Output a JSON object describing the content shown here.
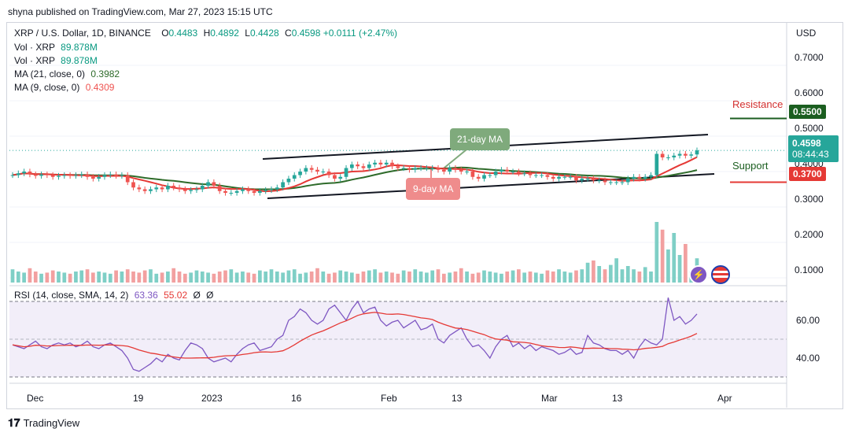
{
  "attribution": "shyna published on TradingView.com, Mar 27, 2023 15:15 UTC",
  "legend": {
    "symbol": "XRP / U.S. Dollar, 1D, BINANCE",
    "open_label": "O",
    "open": "0.4483",
    "high_label": "H",
    "high": "0.4892",
    "low_label": "L",
    "low": "0.4428",
    "close_label": "C",
    "close": "0.4598",
    "change": "+0.0111 (+2.47%)",
    "vol1_label": "Vol · XRP",
    "vol1": "89.878M",
    "vol2_label": "Vol · XRP",
    "vol2": "89.878M",
    "ma21_label": "MA (21, close, 0)",
    "ma21": "0.3982",
    "ma9_label": "MA (9, close, 0)",
    "ma9": "0.4309"
  },
  "currency": "USD",
  "price_badge": {
    "price": "0.4598",
    "countdown": "08:44:43"
  },
  "resistance": {
    "label": "Resistance",
    "value": "0.5500"
  },
  "support": {
    "label": "Support",
    "value": "0.3700"
  },
  "ma_tags": {
    "ma21": "21-day MA",
    "ma9": "9-day MA"
  },
  "rsi_legend": {
    "label": "RSI (14, close, SMA, 14, 2)",
    "rsi": "63.36",
    "sma": "55.02",
    "z1": "Ø",
    "z2": "Ø"
  },
  "branding": "TradingView",
  "colors": {
    "up": "#26a69a",
    "down": "#ef5350",
    "ma21": "#2e6b2a",
    "ma9": "#e53935",
    "rsi": "#7e57c2",
    "rsi_sma": "#e53935"
  },
  "icons": [
    "lightning-icon",
    "us-flag-icon"
  ],
  "chart_data": {
    "type": "candlestick",
    "price_axis_ticks": [
      "0.7000",
      "0.6000",
      "0.5000",
      "0.4000",
      "0.3000",
      "0.2000",
      "0.1000"
    ],
    "rsi_axis_ticks": [
      "60.00",
      "40.00"
    ],
    "x_ticks": [
      "Dec",
      "19",
      "2023",
      "16",
      "Feb",
      "13",
      "Mar",
      "13",
      "Apr"
    ],
    "close_series": [
      0.39,
      0.395,
      0.4,
      0.392,
      0.388,
      0.392,
      0.39,
      0.385,
      0.388,
      0.39,
      0.388,
      0.39,
      0.392,
      0.385,
      0.38,
      0.385,
      0.39,
      0.392,
      0.388,
      0.39,
      0.37,
      0.355,
      0.35,
      0.345,
      0.35,
      0.355,
      0.35,
      0.36,
      0.355,
      0.35,
      0.345,
      0.348,
      0.35,
      0.36,
      0.37,
      0.36,
      0.345,
      0.34,
      0.34,
      0.345,
      0.35,
      0.345,
      0.34,
      0.345,
      0.348,
      0.35,
      0.355,
      0.37,
      0.38,
      0.39,
      0.4,
      0.41,
      0.405,
      0.4,
      0.4,
      0.39,
      0.38,
      0.385,
      0.41,
      0.42,
      0.415,
      0.41,
      0.42,
      0.425,
      0.42,
      0.425,
      0.415,
      0.41,
      0.41,
      0.405,
      0.41,
      0.41,
      0.41,
      0.41,
      0.405,
      0.4,
      0.41,
      0.405,
      0.4,
      0.4,
      0.385,
      0.38,
      0.39,
      0.39,
      0.4,
      0.405,
      0.4,
      0.4,
      0.395,
      0.395,
      0.39,
      0.39,
      0.39,
      0.385,
      0.38,
      0.385,
      0.385,
      0.385,
      0.375,
      0.38,
      0.38,
      0.375,
      0.375,
      0.37,
      0.37,
      0.37,
      0.37,
      0.38,
      0.385,
      0.38,
      0.385,
      0.39,
      0.45,
      0.44,
      0.44,
      0.445,
      0.45,
      0.445,
      0.4483,
      0.4598
    ],
    "volume_relative": [
      0.12,
      0.1,
      0.09,
      0.13,
      0.1,
      0.08,
      0.09,
      0.11,
      0.1,
      0.09,
      0.08,
      0.1,
      0.11,
      0.12,
      0.09,
      0.1,
      0.09,
      0.08,
      0.11,
      0.1,
      0.12,
      0.1,
      0.09,
      0.11,
      0.12,
      0.08,
      0.09,
      0.1,
      0.13,
      0.1,
      0.08,
      0.09,
      0.11,
      0.1,
      0.09,
      0.08,
      0.1,
      0.11,
      0.12,
      0.09,
      0.1,
      0.09,
      0.08,
      0.11,
      0.1,
      0.12,
      0.1,
      0.09,
      0.11,
      0.12,
      0.08,
      0.09,
      0.1,
      0.13,
      0.1,
      0.08,
      0.09,
      0.11,
      0.1,
      0.09,
      0.08,
      0.1,
      0.11,
      0.12,
      0.09,
      0.1,
      0.09,
      0.08,
      0.11,
      0.1,
      0.12,
      0.1,
      0.09,
      0.11,
      0.12,
      0.08,
      0.09,
      0.1,
      0.13,
      0.1,
      0.08,
      0.09,
      0.11,
      0.1,
      0.09,
      0.08,
      0.1,
      0.11,
      0.12,
      0.09,
      0.1,
      0.09,
      0.08,
      0.11,
      0.1,
      0.12,
      0.1,
      0.09,
      0.11,
      0.12,
      0.18,
      0.2,
      0.15,
      0.12,
      0.16,
      0.22,
      0.12,
      0.15,
      0.12,
      0.1,
      0.14,
      0.1,
      0.55,
      0.48,
      0.3,
      0.45,
      0.25,
      0.35,
      0.1,
      0.22
    ],
    "rsi": [
      47,
      46,
      45,
      47,
      49,
      46,
      45,
      47,
      48,
      47,
      48,
      46,
      47,
      49,
      46,
      45,
      47,
      48,
      46,
      44,
      40,
      34,
      33,
      35,
      37,
      40,
      38,
      42,
      40,
      39,
      44,
      48,
      47,
      45,
      40,
      38,
      39,
      40,
      38,
      42,
      45,
      47,
      48,
      44,
      45,
      46,
      50,
      52,
      60,
      62,
      66,
      64,
      60,
      58,
      60,
      66,
      68,
      64,
      60,
      66,
      70,
      64,
      66,
      67,
      60,
      57,
      59,
      60,
      56,
      58,
      60,
      55,
      56,
      58,
      50,
      48,
      52,
      54,
      56,
      50,
      46,
      47,
      44,
      40,
      46,
      50,
      52,
      46,
      48,
      45,
      47,
      44,
      46,
      45,
      44,
      42,
      43,
      45,
      42,
      43,
      52,
      48,
      47,
      45,
      44,
      44,
      42,
      44,
      40,
      46,
      50,
      48,
      47,
      50,
      72,
      60,
      62,
      58,
      60,
      63.36
    ],
    "rsi_sma_end": 55.02,
    "resistance": 0.55,
    "support": 0.37
  }
}
